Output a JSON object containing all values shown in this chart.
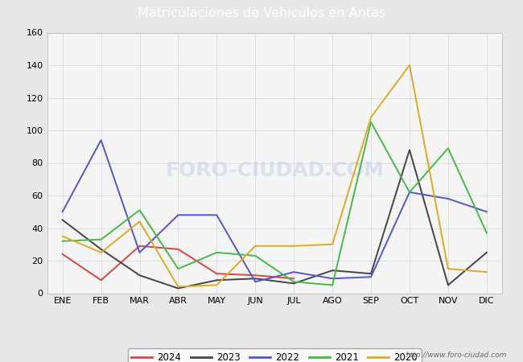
{
  "title": "Matriculaciones de Vehiculos en Antas",
  "title_bg_color": "#5588cc",
  "title_text_color": "#ffffff",
  "months": [
    "ENE",
    "FEB",
    "MAR",
    "ABR",
    "MAY",
    "JUN",
    "JUL",
    "AGO",
    "SEP",
    "OCT",
    "NOV",
    "DIC"
  ],
  "ylim": [
    0,
    160
  ],
  "yticks": [
    0,
    20,
    40,
    60,
    80,
    100,
    120,
    140,
    160
  ],
  "series": {
    "2024": {
      "color": "#dd4444",
      "data": [
        24,
        8,
        29,
        27,
        12,
        11,
        9,
        null,
        null,
        null,
        null,
        null
      ]
    },
    "2023": {
      "color": "#444444",
      "data": [
        45,
        27,
        11,
        3,
        8,
        9,
        6,
        14,
        12,
        88,
        5,
        25
      ]
    },
    "2022": {
      "color": "#5555cc",
      "data": [
        50,
        94,
        25,
        48,
        48,
        7,
        13,
        9,
        10,
        62,
        58,
        50
      ]
    },
    "2021": {
      "color": "#44bb44",
      "data": [
        32,
        33,
        51,
        15,
        25,
        23,
        7,
        5,
        105,
        62,
        89,
        37
      ]
    },
    "2020": {
      "color": "#ddaa22",
      "data": [
        35,
        25,
        44,
        4,
        5,
        29,
        29,
        30,
        108,
        140,
        15,
        13
      ]
    }
  },
  "legend_order": [
    "2024",
    "2023",
    "2022",
    "2021",
    "2020"
  ],
  "footer_text": "http://www.foro-ciudad.com",
  "bg_color": "#e8e8e8",
  "plot_bg_color": "#f5f5f5",
  "grid_color": "#dddddd",
  "watermark": "FORO-CIUDAD.COM",
  "watermark_color": "#c8d4e8",
  "watermark_alpha": 0.6
}
